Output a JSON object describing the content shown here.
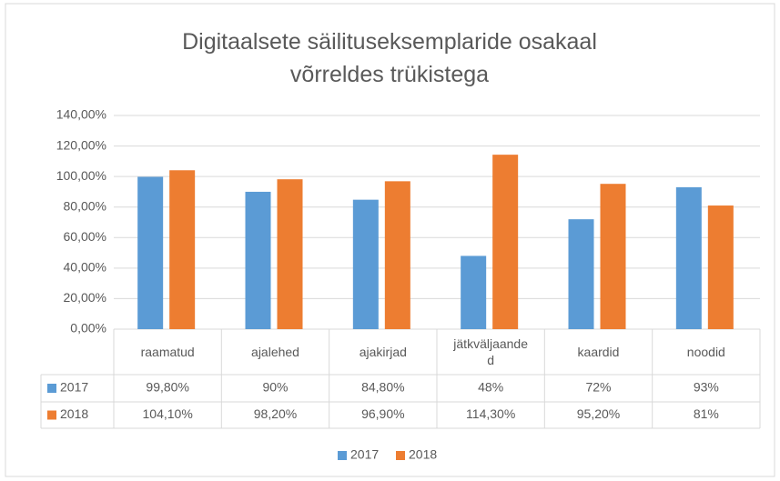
{
  "chart_data": {
    "type": "bar",
    "title": "Digitaalsete säilituseksemplaride osakaal võrreldes trükistega",
    "categories": [
      "raamatud",
      "ajalehed",
      "ajakirjad",
      "jätkväljaanded",
      "kaardid",
      "noodid"
    ],
    "series": [
      {
        "name": "2017",
        "color": "#5b9bd5",
        "values": [
          99.8,
          90,
          84.8,
          48,
          72,
          93
        ],
        "value_labels": [
          "99,80%",
          "90%",
          "84,80%",
          "48%",
          "72%",
          "93%"
        ]
      },
      {
        "name": "2018",
        "color": "#ed7d31",
        "values": [
          104.1,
          98.2,
          96.9,
          114.3,
          95.2,
          81
        ],
        "value_labels": [
          "104,10%",
          "98,20%",
          "96,90%",
          "114,30%",
          "95,20%",
          "81%"
        ]
      }
    ],
    "ylim": [
      0,
      140
    ],
    "yticks": [
      {
        "value": 0,
        "label": "0,00%"
      },
      {
        "value": 20,
        "label": "20,00%"
      },
      {
        "value": 40,
        "label": "40,00%"
      },
      {
        "value": 60,
        "label": "60,00%"
      },
      {
        "value": 80,
        "label": "80,00%"
      },
      {
        "value": 100,
        "label": "100,00%"
      },
      {
        "value": 120,
        "label": "120,00%"
      },
      {
        "value": 140,
        "label": "140,00%"
      }
    ],
    "grid": true,
    "legend": "bottom"
  }
}
